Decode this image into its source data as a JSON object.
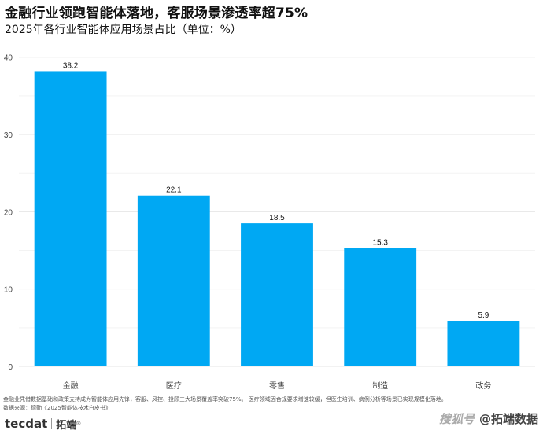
{
  "chart_data": {
    "type": "bar",
    "title": "金融行业领跑智能体落地，客服场景渗透率超75%",
    "subtitle": "2025年各行业智能体应用场景占比（单位：%）",
    "categories": [
      "金融",
      "医疗",
      "零售",
      "制造",
      "政务"
    ],
    "values": [
      38.2,
      22.1,
      18.5,
      15.3,
      5.9
    ],
    "data_labels": [
      "38.2",
      "22.1",
      "18.5",
      "15.3",
      "5.9"
    ],
    "yticks": [
      "0",
      "10",
      "20",
      "30",
      "40"
    ],
    "ylim": [
      0,
      41.5
    ],
    "grid": true,
    "bar_color": "#00a8f3"
  },
  "footer": {
    "note": "金融业凭借数据基础和政策支持成为智能体应用先锋，客服、风控、投顾三大场景覆盖率突破75%。 医疗领域因合规要求增速较缓，但医生培训、病例分析等场景已实现规模化落地。",
    "source": "数据来源：德勤《2025智能体技术白皮书》",
    "logo_left": "tecdat",
    "logo_left2": "拓端",
    "logo_mark": "®",
    "platform": "搜狐号",
    "account": "@拓端数据"
  }
}
